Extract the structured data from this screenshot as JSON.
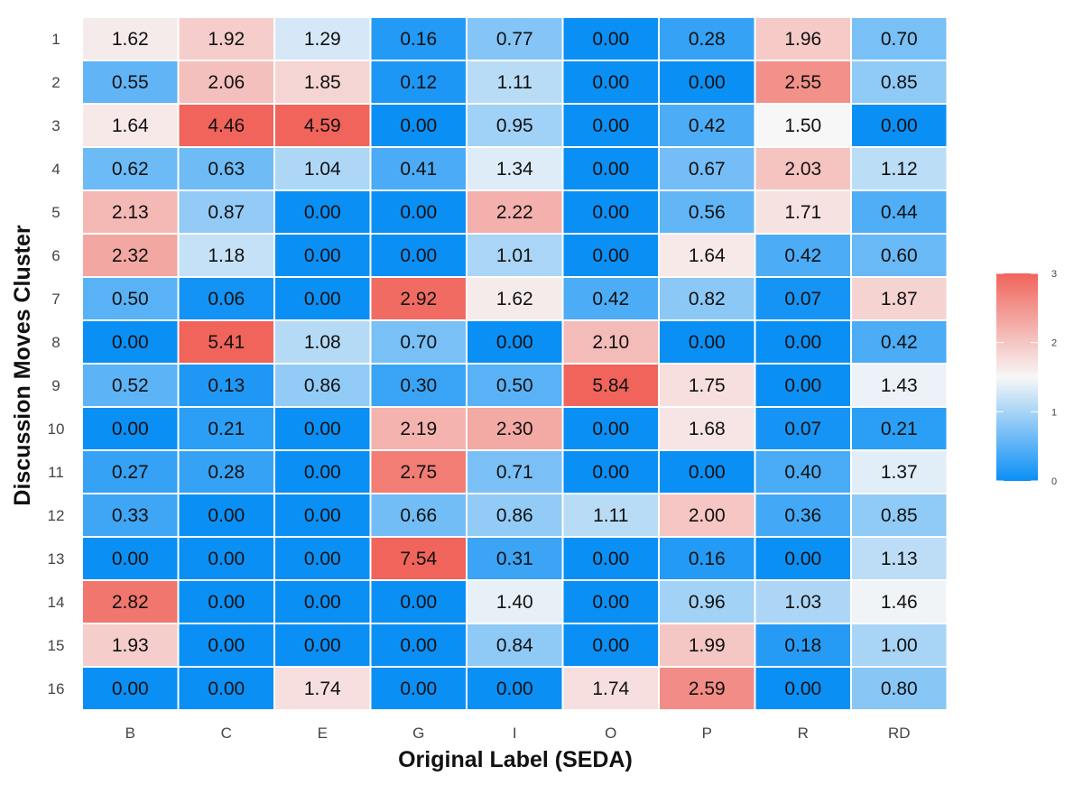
{
  "chart_data": {
    "type": "heatmap",
    "title": "",
    "xlabel": "Original Label (SEDA)",
    "ylabel": "Discussion Moves Cluster",
    "columns": [
      "B",
      "C",
      "E",
      "G",
      "I",
      "O",
      "P",
      "R",
      "RD"
    ],
    "rows": [
      "1",
      "2",
      "3",
      "4",
      "5",
      "6",
      "7",
      "8",
      "9",
      "10",
      "11",
      "12",
      "13",
      "14",
      "15",
      "16"
    ],
    "values": [
      [
        "1.62",
        "1.92",
        "1.29",
        "0.16",
        "0.77",
        "0.00",
        "0.28",
        "1.96",
        "0.70"
      ],
      [
        "0.55",
        "2.06",
        "1.85",
        "0.12",
        "1.11",
        "0.00",
        "0.00",
        "2.55",
        "0.85"
      ],
      [
        "1.64",
        "4.46",
        "4.59",
        "0.00",
        "0.95",
        "0.00",
        "0.42",
        "1.50",
        "0.00"
      ],
      [
        "0.62",
        "0.63",
        "1.04",
        "0.41",
        "1.34",
        "0.00",
        "0.67",
        "2.03",
        "1.12"
      ],
      [
        "2.13",
        "0.87",
        "0.00",
        "0.00",
        "2.22",
        "0.00",
        "0.56",
        "1.71",
        "0.44"
      ],
      [
        "2.32",
        "1.18",
        "0.00",
        "0.00",
        "1.01",
        "0.00",
        "1.64",
        "0.42",
        "0.60"
      ],
      [
        "0.50",
        "0.06",
        "0.00",
        "2.92",
        "1.62",
        "0.42",
        "0.82",
        "0.07",
        "1.87"
      ],
      [
        "0.00",
        "5.41",
        "1.08",
        "0.70",
        "0.00",
        "2.10",
        "0.00",
        "0.00",
        "0.42"
      ],
      [
        "0.52",
        "0.13",
        "0.86",
        "0.30",
        "0.50",
        "5.84",
        "1.75",
        "0.00",
        "1.43"
      ],
      [
        "0.00",
        "0.21",
        "0.00",
        "2.19",
        "2.30",
        "0.00",
        "1.68",
        "0.07",
        "0.21"
      ],
      [
        "0.27",
        "0.28",
        "0.00",
        "2.75",
        "0.71",
        "0.00",
        "0.00",
        "0.40",
        "1.37"
      ],
      [
        "0.33",
        "0.00",
        "0.00",
        "0.66",
        "0.86",
        "1.11",
        "2.00",
        "0.36",
        "0.85"
      ],
      [
        "0.00",
        "0.00",
        "0.00",
        "7.54",
        "0.31",
        "0.00",
        "0.16",
        "0.00",
        "1.13"
      ],
      [
        "2.82",
        "0.00",
        "0.00",
        "0.00",
        "1.40",
        "0.00",
        "0.96",
        "1.03",
        "1.46"
      ],
      [
        "1.93",
        "0.00",
        "0.00",
        "0.00",
        "0.84",
        "0.00",
        "1.99",
        "0.18",
        "1.00"
      ],
      [
        "0.00",
        "0.00",
        "1.74",
        "0.00",
        "0.00",
        "1.74",
        "2.59",
        "0.00",
        "0.80"
      ]
    ],
    "color_scale": {
      "min": 0,
      "max": 3,
      "low_color": "#0a8ff5",
      "mid_color": "#f7f7f7",
      "high_color": "#f0645b",
      "midpoint": 1.5
    },
    "legend": {
      "position": "right",
      "ticks": [
        "0",
        "1",
        "2",
        "3"
      ]
    },
    "grid": false
  }
}
